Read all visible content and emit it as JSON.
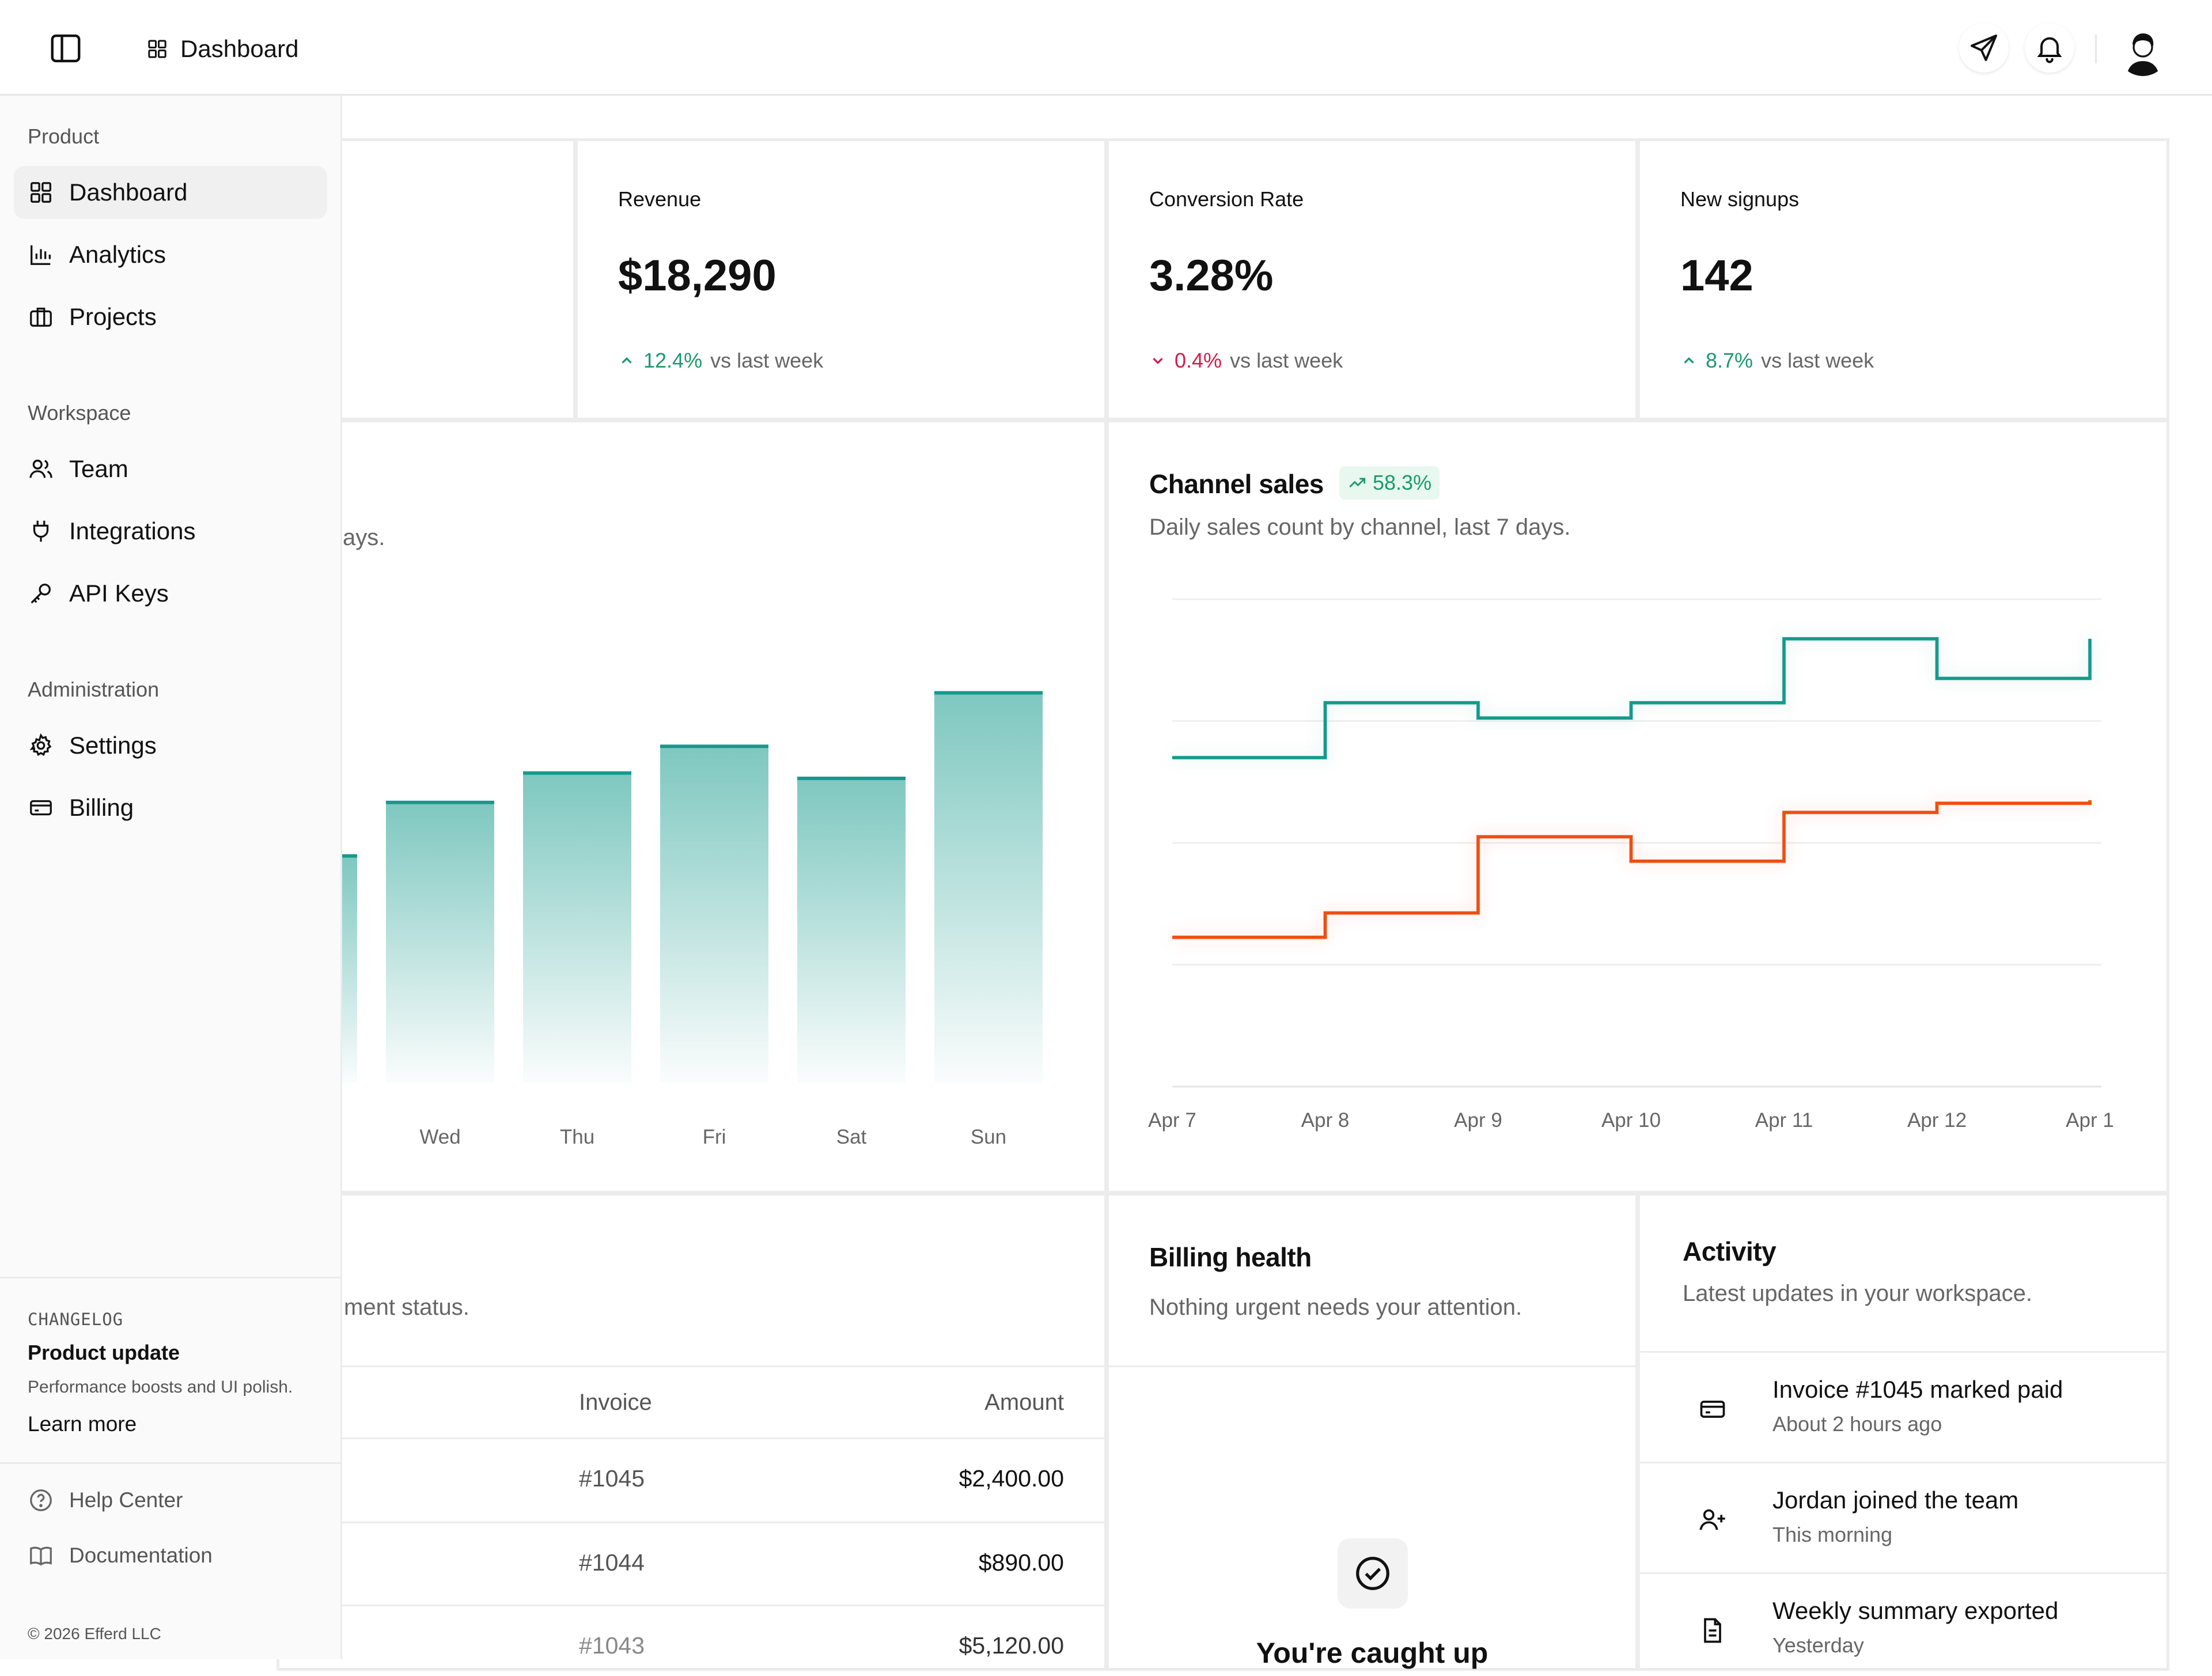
{
  "header": {
    "breadcrumb": "Dashboard"
  },
  "sidebar": {
    "product_title": "Product",
    "workspace_title": "Workspace",
    "admin_title": "Administration",
    "items": [
      {
        "label": "Dashboard",
        "icon": "grid-icon"
      },
      {
        "label": "Analytics",
        "icon": "bar-chart-icon"
      },
      {
        "label": "Projects",
        "icon": "briefcase-icon"
      },
      {
        "label": "Team",
        "icon": "users-icon"
      },
      {
        "label": "Integrations",
        "icon": "plug-icon"
      },
      {
        "label": "API Keys",
        "icon": "key-icon"
      },
      {
        "label": "Settings",
        "icon": "gear-icon"
      },
      {
        "label": "Billing",
        "icon": "credit-card-icon"
      }
    ],
    "changelog": {
      "tag": "CHANGELOG",
      "title": "Product update",
      "desc": "Performance boosts and UI polish.",
      "link": "Learn more"
    },
    "help": "Help Center",
    "docs": "Documentation",
    "copyright": "© 2026 Efferd LLC"
  },
  "stats": [
    {
      "label": "Revenue",
      "value": "$18,290",
      "delta": "12.4%",
      "dir": "up",
      "suffix": "vs last week"
    },
    {
      "label": "Conversion Rate",
      "value": "3.28%",
      "delta": "0.4%",
      "dir": "down",
      "suffix": "vs last week"
    },
    {
      "label": "New signups",
      "value": "142",
      "delta": "8.7%",
      "dir": "up",
      "suffix": "vs last week"
    }
  ],
  "left_chart": {
    "badge_fragment": "%",
    "sub_fragment": "ays."
  },
  "channel": {
    "title": "Channel sales",
    "badge": "58.3%",
    "sub": "Daily sales count by channel, last 7 days."
  },
  "chart_data": [
    {
      "type": "bar",
      "categories": [
        "Wed",
        "Thu",
        "Fri",
        "Sat",
        "Sun"
      ],
      "values": [
        210,
        232,
        252,
        228,
        292
      ],
      "partial_left_value": 170,
      "ylim": [
        0,
        300
      ],
      "color": "#149a8c"
    },
    {
      "type": "line",
      "step": true,
      "categories": [
        "Apr 7",
        "Apr 8",
        "Apr 9",
        "Apr 10",
        "Apr 11",
        "Apr 12",
        "Apr 1"
      ],
      "series": [
        {
          "values": [
            108,
            126,
            121,
            126,
            147,
            134,
            147
          ],
          "color": "#149a8c"
        },
        {
          "values": [
            49,
            57,
            82,
            74,
            90,
            93,
            94
          ],
          "color": "#f04d12"
        }
      ],
      "ylim": [
        0,
        160
      ],
      "grid": true
    }
  ],
  "invoices": {
    "sub_fragment": "ment status.",
    "col_invoice": "Invoice",
    "col_amount": "Amount",
    "rows": [
      {
        "invoice": "#1045",
        "amount": "$2,400.00"
      },
      {
        "invoice": "#1044",
        "amount": "$890.00"
      },
      {
        "invoice": "#1043",
        "amount": "$5,120.00"
      }
    ]
  },
  "billing": {
    "title": "Billing health",
    "sub": "Nothing urgent needs your attention.",
    "caught_up": "You're caught up"
  },
  "activity": {
    "title": "Activity",
    "sub": "Latest updates in your workspace.",
    "items": [
      {
        "title": "Invoice #1045 marked paid",
        "time": "About 2 hours ago",
        "icon": "credit-card-icon"
      },
      {
        "title": "Jordan joined the team",
        "time": "This morning",
        "icon": "user-plus-icon"
      },
      {
        "title": "Weekly summary exported",
        "time": "Yesterday",
        "icon": "file-icon"
      }
    ]
  }
}
